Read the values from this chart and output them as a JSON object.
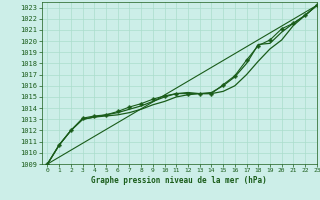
{
  "title": "Graphe pression niveau de la mer (hPa)",
  "bg_color": "#cceee8",
  "grid_color": "#aaddcc",
  "line_color": "#1a5c1a",
  "xlim": [
    -0.5,
    23
  ],
  "ylim": [
    1009,
    1023.5
  ],
  "xticks": [
    0,
    1,
    2,
    3,
    4,
    5,
    6,
    7,
    8,
    9,
    10,
    11,
    12,
    13,
    14,
    15,
    16,
    17,
    18,
    19,
    20,
    21,
    22,
    23
  ],
  "yticks": [
    1009,
    1010,
    1011,
    1012,
    1013,
    1014,
    1015,
    1016,
    1017,
    1018,
    1019,
    1020,
    1021,
    1022,
    1023
  ],
  "series": [
    {
      "x": [
        0,
        1,
        2,
        3,
        4,
        5,
        6,
        7,
        8,
        9,
        10,
        11,
        12,
        13,
        14,
        15,
        16,
        17,
        18,
        19,
        20,
        21,
        22,
        23
      ],
      "y": [
        1009,
        1010.7,
        1012,
        1013,
        1013.2,
        1013.3,
        1013.4,
        1013.6,
        1013.9,
        1014.3,
        1014.6,
        1015.0,
        1015.2,
        1015.3,
        1015.3,
        1015.5,
        1016.0,
        1017.0,
        1018.2,
        1019.3,
        1020.1,
        1021.4,
        1022.3,
        1023.2
      ],
      "style": "-",
      "marker": null,
      "lw": 0.9
    },
    {
      "x": [
        0,
        1,
        2,
        3,
        4,
        5,
        6,
        7,
        8,
        9,
        10,
        11,
        12,
        13,
        14,
        15,
        16,
        17,
        18,
        19,
        20,
        21,
        22,
        23
      ],
      "y": [
        1009,
        1010.7,
        1012,
        1013,
        1013.2,
        1013.4,
        1013.6,
        1013.9,
        1014.2,
        1014.6,
        1015.0,
        1015.3,
        1015.4,
        1015.3,
        1015.4,
        1016.0,
        1016.8,
        1018.0,
        1019.7,
        1019.8,
        1020.8,
        1021.6,
        1022.3,
        1023.2
      ],
      "style": "-",
      "marker": null,
      "lw": 0.9
    },
    {
      "x": [
        0,
        1,
        2,
        3,
        4,
        5,
        6,
        7,
        8,
        9,
        10,
        11,
        12,
        13,
        14,
        15,
        16,
        17,
        18,
        19,
        20,
        21,
        22,
        23
      ],
      "y": [
        1009,
        1010.7,
        1012,
        1013.1,
        1013.3,
        1013.4,
        1013.7,
        1014.1,
        1014.4,
        1014.8,
        1015.1,
        1015.3,
        1015.3,
        1015.3,
        1015.3,
        1016.1,
        1016.9,
        1018.3,
        1019.6,
        1020.1,
        1021.1,
        1021.6,
        1022.3,
        1023.2
      ],
      "style": "-",
      "marker": "P",
      "markersize": 2.5,
      "lw": 0.8
    },
    {
      "x": [
        0,
        23
      ],
      "y": [
        1009,
        1023.2
      ],
      "style": "-",
      "marker": null,
      "lw": 0.8
    }
  ]
}
